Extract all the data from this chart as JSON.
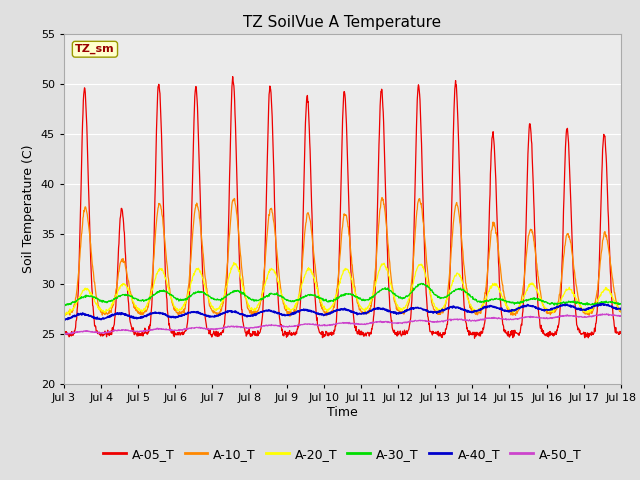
{
  "title": "TZ SoilVue A Temperature",
  "xlabel": "Time",
  "ylabel": "Soil Temperature (C)",
  "ylim": [
    20,
    55
  ],
  "yticks": [
    20,
    25,
    30,
    35,
    40,
    45,
    50,
    55
  ],
  "date_labels": [
    "Jul 3",
    "Jul 4",
    "Jul 5",
    "Jul 6",
    "Jul 7",
    "Jul 8",
    "Jul 9",
    "Jul 10",
    "Jul 11",
    "Jul 12",
    "Jul 13",
    "Jul 14",
    "Jul 15",
    "Jul 16",
    "Jul 17",
    "Jul 18"
  ],
  "annotation_text": "TZ_sm",
  "annotation_color": "#990000",
  "annotation_bg": "#ffffcc",
  "annotation_edge": "#999900",
  "series_colors": {
    "A-05_T": "#ee0000",
    "A-10_T": "#ff8800",
    "A-20_T": "#ffff00",
    "A-30_T": "#00dd00",
    "A-40_T": "#0000cc",
    "A-50_T": "#cc44cc"
  },
  "fig_bg": "#e0e0e0",
  "plot_bg": "#ebebeb",
  "grid_color": "#ffffff",
  "title_fontsize": 11,
  "axis_fontsize": 9,
  "tick_fontsize": 8,
  "legend_fontsize": 9
}
